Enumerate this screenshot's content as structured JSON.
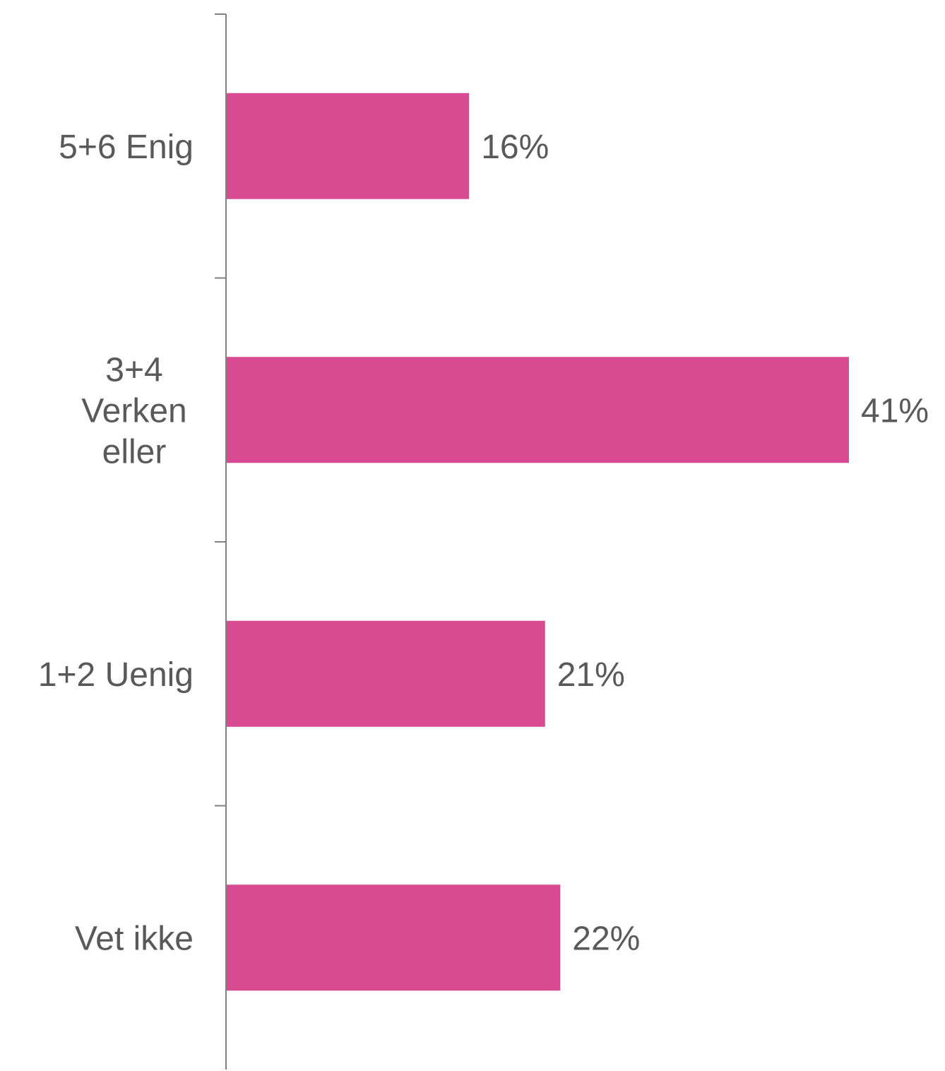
{
  "chart_data": {
    "type": "bar",
    "orientation": "horizontal",
    "categories": [
      "5+6 Enig",
      "3+4 Verken eller",
      "1+2 Uenig",
      "Vet ikke"
    ],
    "category_label_lines": [
      [
        "5+6 Enig"
      ],
      [
        "3+4",
        "Verken",
        "eller"
      ],
      [
        "1+2 Uenig"
      ],
      [
        "Vet ikke"
      ]
    ],
    "values": [
      16,
      41,
      21,
      22
    ],
    "value_labels": [
      "16%",
      "41%",
      "21%",
      "22%"
    ],
    "bar_color": "#d84b93",
    "axis_color": "#808080",
    "label_color": "#595959",
    "xlim": [
      0,
      41
    ],
    "grid": false,
    "legend": "none",
    "title": "",
    "xlabel": "",
    "ylabel": ""
  }
}
